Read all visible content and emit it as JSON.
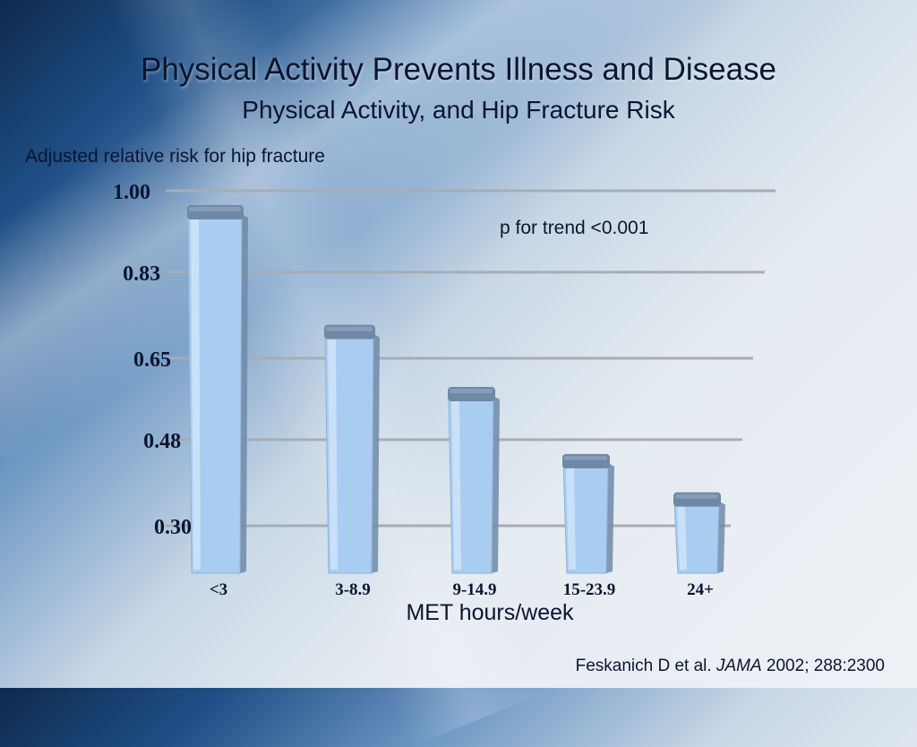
{
  "slide": {
    "title": "Physical Activity Prevents Illness and Disease",
    "subtitle": "Physical Activity, and Hip Fracture Risk",
    "citation_authors": "Feskanich D et al.",
    "citation_journal": "JAMA",
    "citation_details": "2002; 288:2300"
  },
  "colors": {
    "bar_face": "#a9cdf0",
    "bar_top": "#6e88a6",
    "bar_side": "#6f8aa8",
    "gridline": "#a7adb3"
  },
  "chart_data": {
    "type": "bar",
    "title": "",
    "ylabel": "Adjusted relative risk for hip fracture",
    "xlabel": "MET hours/week",
    "annotation": "p for trend <0.001",
    "categories": [
      "<3",
      "3-8.9",
      "9-14.9",
      "15-23.9",
      "24+"
    ],
    "values": [
      0.97,
      0.72,
      0.59,
      0.45,
      0.37
    ],
    "yticks": [
      "1.00",
      "0.83",
      "0.65",
      "0.48",
      "0.30"
    ],
    "ylim": [
      0.3,
      1.0
    ],
    "grid": true,
    "legend": "none"
  }
}
